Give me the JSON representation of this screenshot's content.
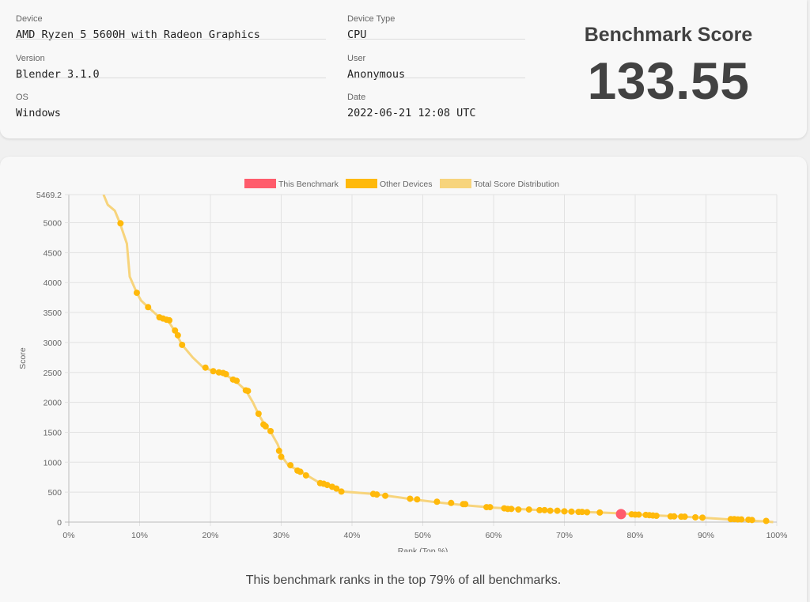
{
  "device": {
    "device_label": "Device",
    "device_value": "AMD Ryzen 5 5600H with Radeon Graphics",
    "version_label": "Version",
    "version_value": "Blender 3.1.0",
    "os_label": "OS",
    "os_value": "Windows",
    "type_label": "Device Type",
    "type_value": "CPU",
    "user_label": "User",
    "user_value": "Anonymous",
    "date_label": "Date",
    "date_value": "2022-06-21 12:08 UTC"
  },
  "score": {
    "title": "Benchmark Score",
    "value": "133.55"
  },
  "summary": "This benchmark ranks in the top 79% of all benchmarks.",
  "colors": {
    "this_benchmark": "#ff5c6c",
    "other_devices": "#ffb90a",
    "distribution": "#f7d47c"
  },
  "chart_data": {
    "type": "scatter",
    "xlabel": "Rank (Top %)",
    "ylabel": "Score",
    "xlim": [
      0,
      100
    ],
    "ylim": [
      0,
      5469.2
    ],
    "x_ticks": [
      0,
      10,
      20,
      30,
      40,
      50,
      60,
      70,
      80,
      90,
      100
    ],
    "x_tick_labels": [
      "0%",
      "10%",
      "20%",
      "30%",
      "40%",
      "50%",
      "60%",
      "70%",
      "80%",
      "90%",
      "100%"
    ],
    "y_ticks": [
      0,
      500,
      1000,
      1500,
      2000,
      2500,
      3000,
      3500,
      4000,
      4500,
      5000,
      5469.2
    ],
    "y_tick_labels": [
      "0",
      "500",
      "1000",
      "1500",
      "2000",
      "2500",
      "3000",
      "3500",
      "4000",
      "4500",
      "5000",
      "5469.2"
    ],
    "grid": true,
    "legend_position": "top-center",
    "legend": [
      "This Benchmark",
      "Other Devices",
      "Total Score Distribution"
    ],
    "series": [
      {
        "name": "Total Score Distribution",
        "kind": "line",
        "points": [
          [
            4.9,
            5469.2
          ],
          [
            5.5,
            5300
          ],
          [
            6.5,
            5200
          ],
          [
            7.2,
            5000
          ],
          [
            8.2,
            4650
          ],
          [
            8.6,
            4100
          ],
          [
            9.6,
            3830
          ],
          [
            10.2,
            3700
          ],
          [
            11.2,
            3590
          ],
          [
            12.8,
            3420
          ],
          [
            14,
            3370
          ],
          [
            15,
            3180
          ],
          [
            16,
            2960
          ],
          [
            17.5,
            2750
          ],
          [
            19,
            2580
          ],
          [
            20.5,
            2520
          ],
          [
            22,
            2470
          ],
          [
            23.5,
            2360
          ],
          [
            25,
            2200
          ],
          [
            26,
            2000
          ],
          [
            26.8,
            1800
          ],
          [
            27.7,
            1620
          ],
          [
            28.5,
            1510
          ],
          [
            29.5,
            1300
          ],
          [
            30.2,
            1080
          ],
          [
            31,
            950
          ],
          [
            32.5,
            860
          ],
          [
            33.8,
            770
          ],
          [
            35.5,
            650
          ],
          [
            37,
            590
          ],
          [
            38.5,
            510
          ],
          [
            40,
            500
          ],
          [
            43,
            470
          ],
          [
            45,
            440
          ],
          [
            48,
            390
          ],
          [
            52,
            330
          ],
          [
            56,
            280
          ],
          [
            60,
            240
          ],
          [
            65,
            210
          ],
          [
            70,
            180
          ],
          [
            75,
            160
          ],
          [
            78,
            145
          ],
          [
            82,
            115
          ],
          [
            86,
            95
          ],
          [
            90,
            70
          ],
          [
            94,
            40
          ],
          [
            97,
            20
          ],
          [
            98.5,
            10
          ],
          [
            99.5,
            0
          ]
        ]
      },
      {
        "name": "Other Devices",
        "kind": "scatter",
        "points": [
          [
            7.3,
            4990
          ],
          [
            9.6,
            3830
          ],
          [
            11.2,
            3590
          ],
          [
            12.8,
            3420
          ],
          [
            13.3,
            3400
          ],
          [
            13.8,
            3380
          ],
          [
            14.2,
            3370
          ],
          [
            15,
            3200
          ],
          [
            15.4,
            3120
          ],
          [
            16,
            2960
          ],
          [
            19.3,
            2580
          ],
          [
            20.4,
            2520
          ],
          [
            21.2,
            2500
          ],
          [
            21.8,
            2490
          ],
          [
            22.2,
            2470
          ],
          [
            23.2,
            2380
          ],
          [
            23.7,
            2360
          ],
          [
            25,
            2200
          ],
          [
            25.3,
            2190
          ],
          [
            26.8,
            1810
          ],
          [
            27.5,
            1630
          ],
          [
            27.8,
            1600
          ],
          [
            28.5,
            1520
          ],
          [
            29.7,
            1190
          ],
          [
            30,
            1090
          ],
          [
            31.3,
            950
          ],
          [
            32.3,
            860
          ],
          [
            32.7,
            840
          ],
          [
            33.5,
            780
          ],
          [
            35.5,
            650
          ],
          [
            36,
            640
          ],
          [
            36.5,
            620
          ],
          [
            37.2,
            590
          ],
          [
            37.8,
            560
          ],
          [
            38.5,
            510
          ],
          [
            43,
            470
          ],
          [
            43.5,
            460
          ],
          [
            44.7,
            440
          ],
          [
            48.2,
            390
          ],
          [
            49.2,
            380
          ],
          [
            52,
            340
          ],
          [
            54,
            320
          ],
          [
            55.7,
            300
          ],
          [
            56,
            300
          ],
          [
            59,
            250
          ],
          [
            59.5,
            250
          ],
          [
            61.5,
            230
          ],
          [
            62,
            220
          ],
          [
            62.5,
            220
          ],
          [
            63.5,
            210
          ],
          [
            65,
            210
          ],
          [
            66.5,
            200
          ],
          [
            67.2,
            200
          ],
          [
            68,
            190
          ],
          [
            69,
            190
          ],
          [
            70,
            180
          ],
          [
            71,
            175
          ],
          [
            72,
            170
          ],
          [
            72.5,
            170
          ],
          [
            73.2,
            165
          ],
          [
            75,
            160
          ],
          [
            79.5,
            130
          ],
          [
            80,
            125
          ],
          [
            80.5,
            125
          ],
          [
            81.5,
            120
          ],
          [
            82,
            115
          ],
          [
            82.5,
            110
          ],
          [
            83,
            105
          ],
          [
            85,
            95
          ],
          [
            85.5,
            95
          ],
          [
            86.5,
            90
          ],
          [
            87,
            90
          ],
          [
            88.5,
            80
          ],
          [
            89.5,
            75
          ],
          [
            93.5,
            50
          ],
          [
            94,
            50
          ],
          [
            94.5,
            45
          ],
          [
            95,
            45
          ],
          [
            96,
            40
          ],
          [
            96.5,
            35
          ],
          [
            98.5,
            20
          ]
        ]
      },
      {
        "name": "This Benchmark",
        "kind": "scatter",
        "points": [
          [
            78,
            133.55
          ]
        ]
      }
    ]
  }
}
